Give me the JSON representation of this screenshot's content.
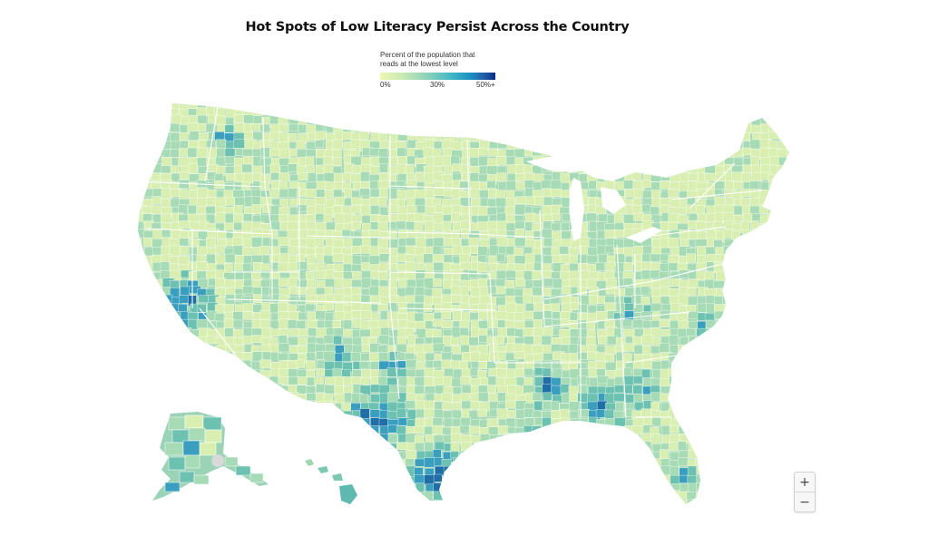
{
  "title": "Hot Spots of Low Literacy Persist Across the Country",
  "legend": {
    "caption_line1": "Percent of the population that",
    "caption_line2": "reads at the lowest level",
    "ticks": [
      "0%",
      "30%",
      "50%+"
    ],
    "color_stops": [
      "#edf8b1",
      "#c7e9b4",
      "#7fcdbb",
      "#41b6c4",
      "#1d91c0",
      "#225ea8",
      "#0c2c84"
    ]
  },
  "map": {
    "region": "United States counties",
    "colors": {
      "low": "#d9efb2",
      "mid_low": "#a7dbb5",
      "mid": "#6cc1b1",
      "mid_high": "#3a9fbf",
      "high": "#1f6fa6",
      "highest": "#0b4a7e",
      "no_data": "#d9d9d9",
      "border": "#ffffff"
    }
  },
  "zoom": {
    "in_label": "+",
    "out_label": "−"
  }
}
